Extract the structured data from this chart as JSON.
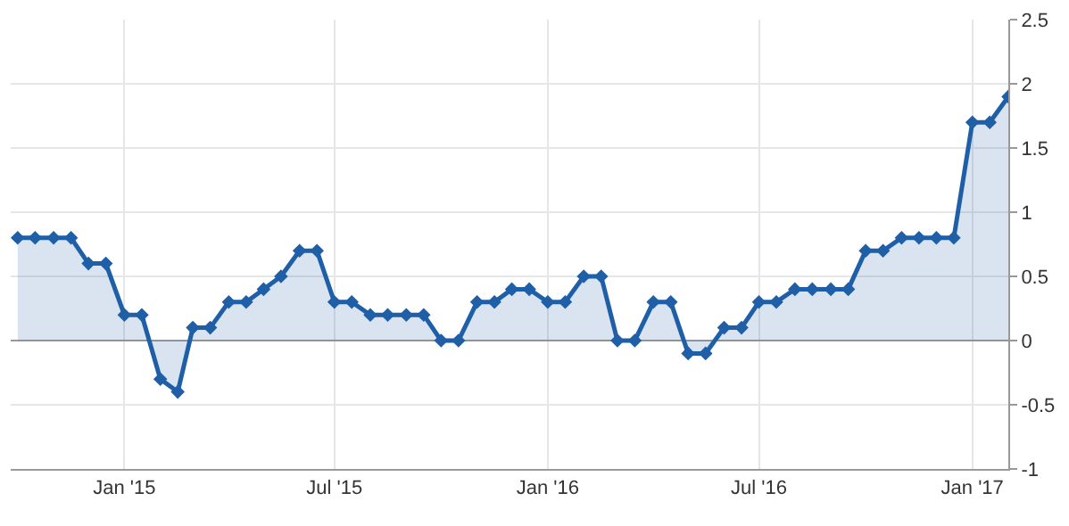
{
  "chart_data": {
    "type": "area",
    "grid": true,
    "marker": "diamond",
    "line_style": "solid",
    "x": [
      "2014-10-01",
      "2014-10-16",
      "2014-11-01",
      "2014-11-16",
      "2014-12-01",
      "2014-12-16",
      "2015-01-01",
      "2015-01-16",
      "2015-02-01",
      "2015-02-16",
      "2015-03-01",
      "2015-03-16",
      "2015-04-01",
      "2015-04-16",
      "2015-05-01",
      "2015-05-16",
      "2015-06-01",
      "2015-06-16",
      "2015-07-01",
      "2015-07-16",
      "2015-08-01",
      "2015-08-16",
      "2015-09-01",
      "2015-09-16",
      "2015-10-01",
      "2015-10-16",
      "2015-11-01",
      "2015-11-16",
      "2015-12-01",
      "2015-12-16",
      "2016-01-01",
      "2016-01-16",
      "2016-02-01",
      "2016-02-16",
      "2016-03-01",
      "2016-03-16",
      "2016-04-01",
      "2016-04-16",
      "2016-05-01",
      "2016-05-16",
      "2016-06-01",
      "2016-06-16",
      "2016-07-01",
      "2016-07-16",
      "2016-08-01",
      "2016-08-16",
      "2016-09-01",
      "2016-09-16",
      "2016-10-01",
      "2016-10-16",
      "2016-11-01",
      "2016-11-16",
      "2016-12-01",
      "2016-12-16",
      "2017-01-01",
      "2017-01-16",
      "2017-02-01"
    ],
    "series": [
      {
        "color": "#1f5fa8",
        "values": [
          0.8,
          0.8,
          0.8,
          0.8,
          0.6,
          0.6,
          0.2,
          0.2,
          -0.3,
          -0.4,
          0.1,
          0.1,
          0.3,
          0.3,
          0.4,
          0.5,
          0.7,
          0.7,
          0.3,
          0.3,
          0.2,
          0.2,
          0.2,
          0.2,
          0.0,
          0.0,
          0.3,
          0.3,
          0.4,
          0.4,
          0.3,
          0.3,
          0.5,
          0.5,
          0.0,
          0.0,
          0.3,
          0.3,
          -0.1,
          -0.1,
          0.1,
          0.1,
          0.3,
          0.3,
          0.4,
          0.4,
          0.4,
          0.4,
          0.7,
          0.7,
          0.8,
          0.8,
          0.8,
          0.8,
          1.7,
          1.7,
          1.9
        ]
      }
    ],
    "xlim": [
      "2014-09-25",
      "2017-02-01"
    ],
    "xticks": [
      {
        "value": "2015-01-01",
        "label": "Jan '15"
      },
      {
        "value": "2015-07-01",
        "label": "Jul '15"
      },
      {
        "value": "2016-01-01",
        "label": "Jan '16"
      },
      {
        "value": "2016-07-01",
        "label": "Jul '16"
      },
      {
        "value": "2017-01-01",
        "label": "Jan '17"
      }
    ],
    "ylim": [
      -1,
      2.5
    ],
    "yticks": [
      -1,
      -0.5,
      0,
      0.5,
      1,
      1.5,
      2,
      2.5
    ]
  }
}
